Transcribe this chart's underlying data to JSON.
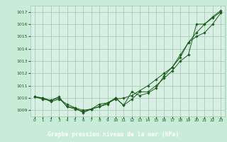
{
  "bg_color": "#c8ecd8",
  "plot_bg_color": "#d8f0e4",
  "grid_color": "#a8ccb8",
  "line_color": "#1a5c1a",
  "marker_color": "#1a5c1a",
  "xlabel": "Graphe pression niveau de la mer (hPa)",
  "xlabel_color": "#ffffff",
  "xlabel_bg": "#2d6e2d",
  "tick_label_color": "#1a5c1a",
  "xlim": [
    -0.5,
    23.5
  ],
  "ylim": [
    1008.5,
    1017.5
  ],
  "yticks": [
    1009,
    1010,
    1011,
    1012,
    1013,
    1014,
    1015,
    1016,
    1017
  ],
  "xticks": [
    0,
    1,
    2,
    3,
    4,
    5,
    6,
    7,
    8,
    9,
    10,
    11,
    12,
    13,
    14,
    15,
    16,
    17,
    18,
    19,
    20,
    21,
    22,
    23
  ],
  "series": [
    [
      1010.1,
      1010.0,
      1009.8,
      1010.0,
      1009.3,
      1009.2,
      1008.8,
      1009.1,
      1009.5,
      1009.6,
      1010.0,
      1009.4,
      1009.9,
      1010.5,
      1010.5,
      1011.0,
      1011.6,
      1012.2,
      1013.0,
      1013.5,
      1016.0,
      1016.0,
      1016.5,
      1017.0
    ],
    [
      1010.1,
      1010.0,
      1009.7,
      1009.9,
      1009.5,
      1009.2,
      1009.0,
      1009.1,
      1009.3,
      1009.6,
      1009.9,
      1010.0,
      1010.2,
      1010.6,
      1011.0,
      1011.5,
      1012.0,
      1012.5,
      1013.5,
      1014.5,
      1015.3,
      1016.0,
      1016.6,
      1017.1
    ],
    [
      1010.1,
      1009.9,
      1009.8,
      1010.1,
      1009.3,
      1009.1,
      1008.9,
      1009.1,
      1009.3,
      1009.5,
      1010.0,
      1009.4,
      1010.5,
      1010.2,
      1010.4,
      1010.8,
      1011.8,
      1012.5,
      1013.3,
      1014.5,
      1015.0,
      1015.3,
      1016.0,
      1016.9
    ]
  ]
}
